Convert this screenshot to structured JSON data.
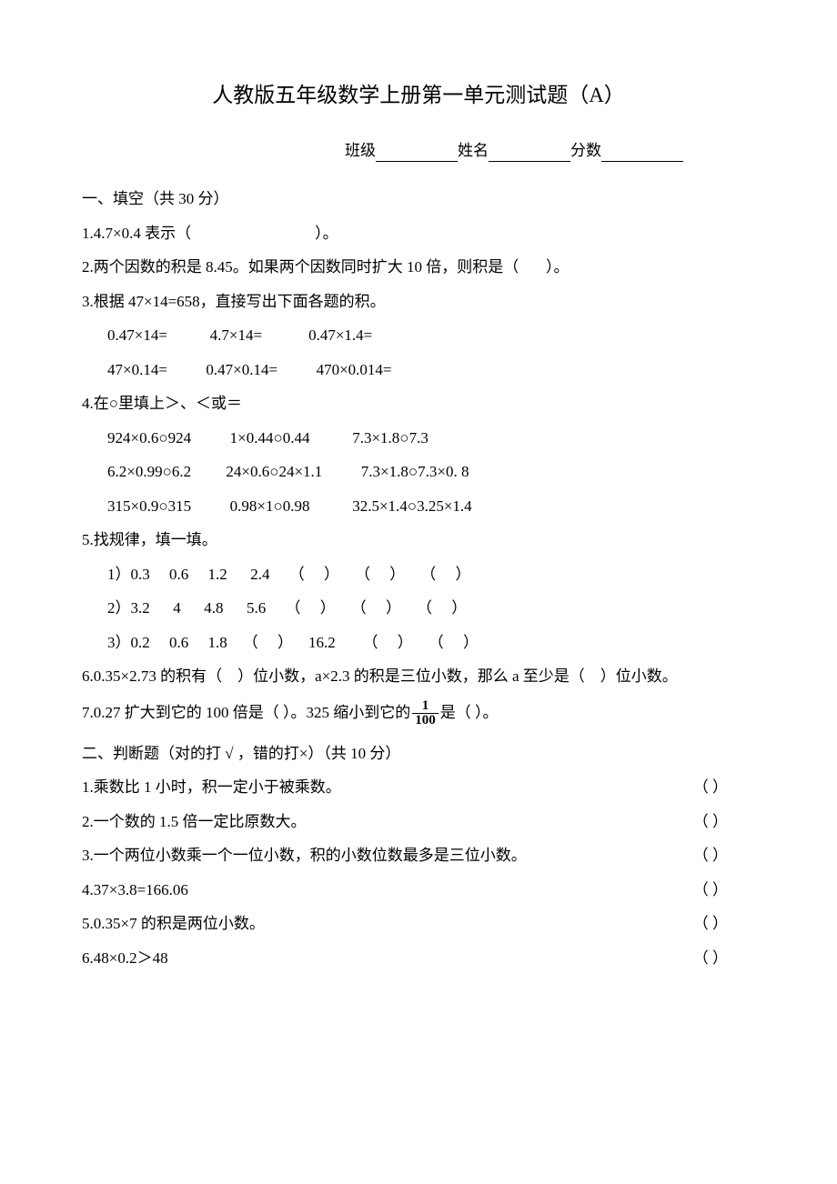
{
  "title": "人教版五年级数学上册第一单元测试题（A）",
  "header": {
    "class_label": "班级",
    "name_label": "姓名",
    "score_label": "分数"
  },
  "section1": {
    "header": "一、填空（共 30 分）",
    "q1": "1.4.7×0.4 表示（                                ）。",
    "q2": "2.两个因数的积是 8.45。如果两个因数同时扩大 10 倍，则积是（       ）。",
    "q3_header": "3.根据 47×14=658，直接写出下面各题的积。",
    "q3_line1": "0.47×14=           4.7×14=            0.47×1.4=",
    "q3_line2": "47×0.14=          0.47×0.14=          470×0.014=",
    "q4_header": "4.在○里填上＞、＜或＝",
    "q4_line1": "924×0.6○924          1×0.44○0.44           7.3×1.8○7.3",
    "q4_line2": "6.2×0.99○6.2         24×0.6○24×1.1          7.3×1.8○7.3×0. 8",
    "q4_line3": "315×0.9○315          0.98×1○0.98           32.5×1.4○3.25×1.4",
    "q5_header": "5.找规律，填一填。",
    "q5_line1": "1）0.3     0.6     1.2      2.4     （     ）    （     ）    （     ）",
    "q5_line2": "2）3.2      4      4.8      5.6     （     ）    （     ）    （     ）",
    "q5_line3": "3）0.2     0.6     1.8    （     ）    16.2       （     ）    （     ）",
    "q6": "6.0.35×2.73 的积有（    ）位小数，a×2.3 的积是三位小数，那么 a 至少是（    ）位小数。",
    "q7_part1": "7.0.27 扩大到它的 100 倍是（      ）。325 缩小到它的",
    "q7_part2": "是（        ）。",
    "q7_fraction_num": "1",
    "q7_fraction_den": "100"
  },
  "section2": {
    "header": "二、判断题（对的打  √ ，错的打×）（共 10 分）",
    "items": [
      {
        "text": "1.乘数比 1 小时，积一定小于被乘数。",
        "paren": "（      ）"
      },
      {
        "text": "2.一个数的 1.5 倍一定比原数大。",
        "paren": "（      ）"
      },
      {
        "text": "3.一个两位小数乘一个一位小数，积的小数位数最多是三位小数。",
        "paren": "（      ）"
      },
      {
        "text": "4.37×3.8=166.06",
        "paren": "（      ）"
      },
      {
        "text": "5.0.35×7 的积是两位小数。",
        "paren": "（       ）"
      },
      {
        "text": "6.48×0.2＞48",
        "paren": "（       ）"
      }
    ]
  },
  "styles": {
    "background_color": "#ffffff",
    "text_color": "#000000",
    "title_fontsize": 23,
    "body_fontsize": 17,
    "font_family": "SimSun"
  }
}
